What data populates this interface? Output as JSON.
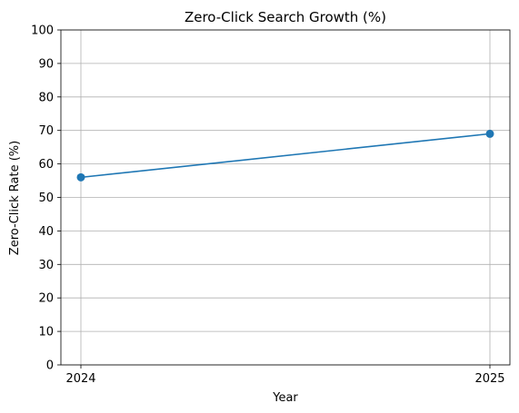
{
  "chart_data": {
    "type": "line",
    "title": "Zero-Click Search Growth (%)",
    "xlabel": "Year",
    "ylabel": "Zero-Click Rate (%)",
    "categories": [
      "2024",
      "2025"
    ],
    "series": [
      {
        "values": [
          56,
          69
        ],
        "color": "#1f77b4",
        "marker": "circle"
      }
    ],
    "ylim": [
      0,
      100
    ],
    "yticks": [
      "0",
      "10",
      "20",
      "30",
      "40",
      "50",
      "60",
      "70",
      "80",
      "90",
      "100"
    ],
    "grid": true,
    "legend": "none"
  }
}
